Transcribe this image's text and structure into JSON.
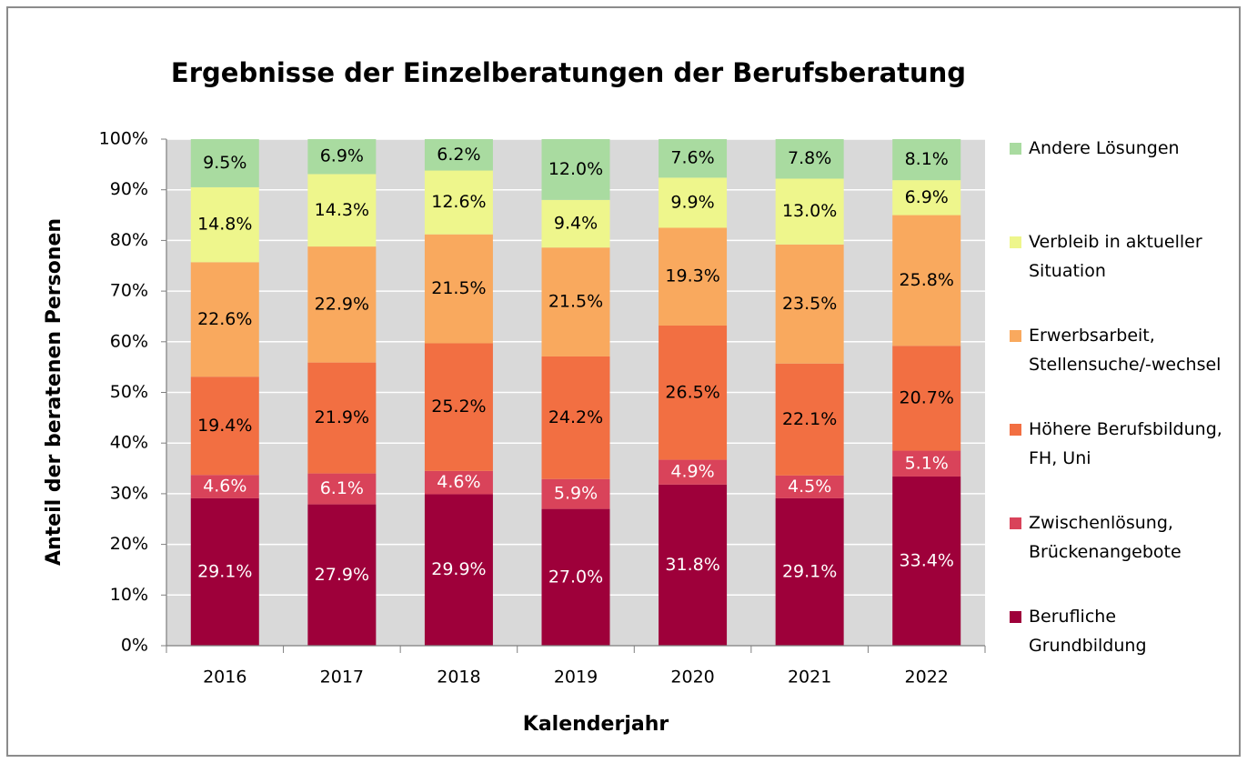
{
  "chart_data": {
    "type": "stacked_bar",
    "title": "Ergebnisse der Einzelberatungen der Berufsberatung",
    "x_label": "Kalenderjahr",
    "y_label": "Anteil der beratenen Personen",
    "categories": [
      "2016",
      "2017",
      "2018",
      "2019",
      "2020",
      "2021",
      "2022"
    ],
    "ylim": [
      0,
      100
    ],
    "yticks": [
      {
        "value": 0,
        "label": "0%"
      },
      {
        "value": 10,
        "label": "10%"
      },
      {
        "value": 20,
        "label": "20%"
      },
      {
        "value": 30,
        "label": "30%"
      },
      {
        "value": 40,
        "label": "40%"
      },
      {
        "value": 50,
        "label": "50%"
      },
      {
        "value": 60,
        "label": "60%"
      },
      {
        "value": 70,
        "label": "70%"
      },
      {
        "value": 80,
        "label": "80%"
      },
      {
        "value": 90,
        "label": "90%"
      },
      {
        "value": 100,
        "label": "100%"
      }
    ],
    "grid": true,
    "legend": "right",
    "series": [
      {
        "name": "Berufliche Grundbildung",
        "color": "#9e003a",
        "label_color": "#ffffff",
        "values": [
          29.1,
          27.9,
          29.9,
          27.0,
          31.8,
          29.1,
          33.4
        ],
        "value_labels": [
          "29.1%",
          "27.9%",
          "29.9%",
          "27.0%",
          "31.8%",
          "29.1%",
          "33.4%"
        ]
      },
      {
        "name": "Zwischenlösung, Brückenangebote",
        "color": "#d9435a",
        "label_color": "#ffffff",
        "values": [
          4.6,
          6.1,
          4.6,
          5.9,
          4.9,
          4.5,
          5.1
        ],
        "value_labels": [
          "4.6%",
          "6.1%",
          "4.6%",
          "5.9%",
          "4.9%",
          "4.5%",
          "5.1%"
        ]
      },
      {
        "name": "Höhere Berufsbildung, FH, Uni",
        "color": "#f26f42",
        "label_color": "#000000",
        "values": [
          19.4,
          21.9,
          25.2,
          24.2,
          26.5,
          22.1,
          20.7
        ],
        "value_labels": [
          "19.4%",
          "21.9%",
          "25.2%",
          "24.2%",
          "26.5%",
          "22.1%",
          "20.7%"
        ]
      },
      {
        "name": "Erwerbsarbeit, Stellensuche/-wechsel",
        "color": "#f9a95e",
        "label_color": "#000000",
        "values": [
          22.6,
          22.9,
          21.5,
          21.5,
          19.3,
          23.5,
          25.8
        ],
        "value_labels": [
          "22.6%",
          "22.9%",
          "21.5%",
          "21.5%",
          "19.3%",
          "23.5%",
          "25.8%"
        ]
      },
      {
        "name": "Verbleib in aktueller Situation",
        "color": "#eef68c",
        "label_color": "#000000",
        "values": [
          14.8,
          14.3,
          12.6,
          9.4,
          9.9,
          13.0,
          6.9
        ],
        "value_labels": [
          "14.8%",
          "14.3%",
          "12.6%",
          "9.4%",
          "9.9%",
          "13.0%",
          "6.9%"
        ]
      },
      {
        "name": "Andere Lösungen",
        "color": "#a9dba0",
        "label_color": "#000000",
        "values": [
          9.5,
          6.9,
          6.2,
          12.0,
          7.6,
          7.8,
          8.1
        ],
        "value_labels": [
          "9.5%",
          "6.9%",
          "6.2%",
          "12.0%",
          "7.6%",
          "7.8%",
          "8.1%"
        ]
      }
    ]
  }
}
